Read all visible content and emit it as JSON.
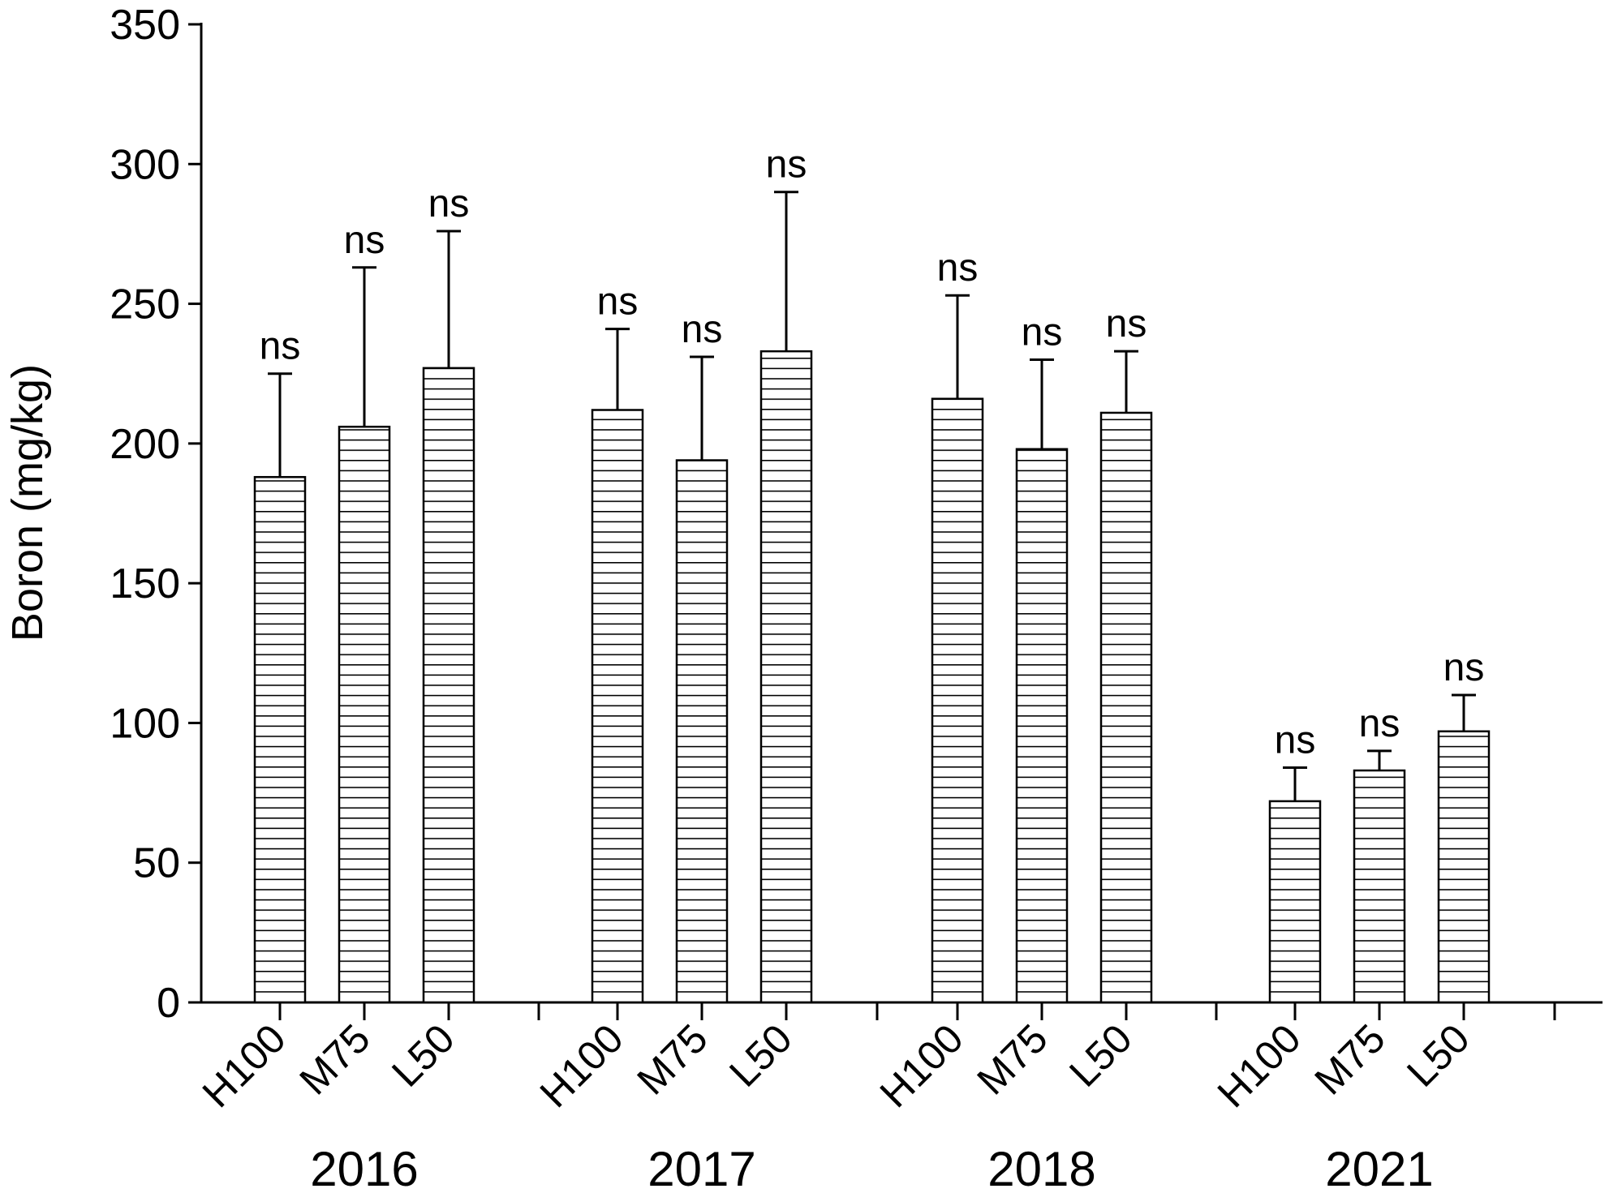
{
  "chart_data": {
    "type": "bar",
    "ylabel": "Boron (mg/kg)",
    "xlabel": "",
    "ylim": [
      0,
      350
    ],
    "yticks": [
      0,
      50,
      100,
      150,
      200,
      250,
      300,
      350
    ],
    "grid": false,
    "legend": "none",
    "bar_fill": "horizontal-hatch",
    "colors": {
      "bar_stroke": "#000000",
      "bar_fill": "#ffffff",
      "hatch": "#000000",
      "axis": "#000000"
    },
    "groups": [
      {
        "label": "2016",
        "bars": [
          {
            "category": "H100",
            "value": 188,
            "error": 37,
            "annotation": "ns"
          },
          {
            "category": "M75",
            "value": 206,
            "error": 57,
            "annotation": "ns"
          },
          {
            "category": "L50",
            "value": 227,
            "error": 49,
            "annotation": "ns"
          }
        ]
      },
      {
        "label": "2017",
        "bars": [
          {
            "category": "H100",
            "value": 212,
            "error": 29,
            "annotation": "ns"
          },
          {
            "category": "M75",
            "value": 194,
            "error": 37,
            "annotation": "ns"
          },
          {
            "category": "L50",
            "value": 233,
            "error": 57,
            "annotation": "ns"
          }
        ]
      },
      {
        "label": "2018",
        "bars": [
          {
            "category": "H100",
            "value": 216,
            "error": 37,
            "annotation": "ns"
          },
          {
            "category": "M75",
            "value": 198,
            "error": 32,
            "annotation": "ns"
          },
          {
            "category": "L50",
            "value": 211,
            "error": 22,
            "annotation": "ns"
          }
        ]
      },
      {
        "label": "2021",
        "bars": [
          {
            "category": "H100",
            "value": 72,
            "error": 12,
            "annotation": "ns"
          },
          {
            "category": "M75",
            "value": 83,
            "error": 7,
            "annotation": "ns"
          },
          {
            "category": "L50",
            "value": 97,
            "error": 13,
            "annotation": "ns"
          }
        ]
      }
    ]
  }
}
